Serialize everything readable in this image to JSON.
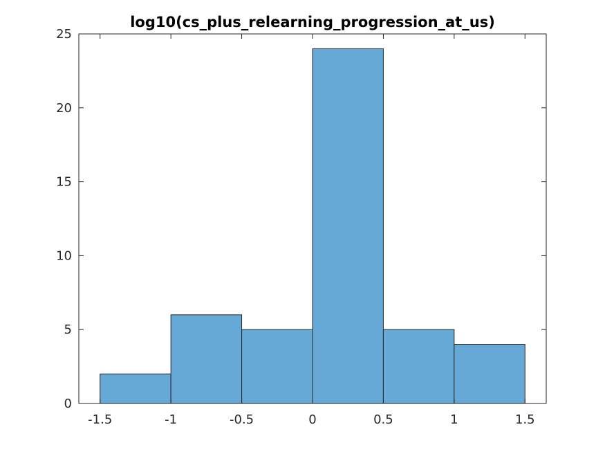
{
  "chart_data": {
    "type": "bar",
    "title": "log10(cs_plus_relearning_progression_at_us)",
    "xlabel": "",
    "ylabel": "",
    "bins": [
      {
        "x0": -1.5,
        "x1": -1.0,
        "count": 2
      },
      {
        "x0": -1.0,
        "x1": -0.5,
        "count": 6
      },
      {
        "x0": -0.5,
        "x1": 0.0,
        "count": 5
      },
      {
        "x0": 0.0,
        "x1": 0.5,
        "count": 24
      },
      {
        "x0": 0.5,
        "x1": 1.0,
        "count": 5
      },
      {
        "x0": 1.0,
        "x1": 1.5,
        "count": 4
      }
    ],
    "xlim": [
      -1.65,
      1.65
    ],
    "ylim": [
      0,
      25
    ],
    "xticks": [
      -1.5,
      -1,
      -0.5,
      0,
      0.5,
      1,
      1.5
    ],
    "xtick_labels": [
      "-1.5",
      "-1",
      "-0.5",
      "0",
      "0.5",
      "1",
      "1.5"
    ],
    "yticks": [
      0,
      5,
      10,
      15,
      20,
      25
    ],
    "ytick_labels": [
      "0",
      "5",
      "10",
      "15",
      "20",
      "25"
    ],
    "grid": false,
    "bar_color": "#66a9d7",
    "edge_color": "#262626"
  }
}
